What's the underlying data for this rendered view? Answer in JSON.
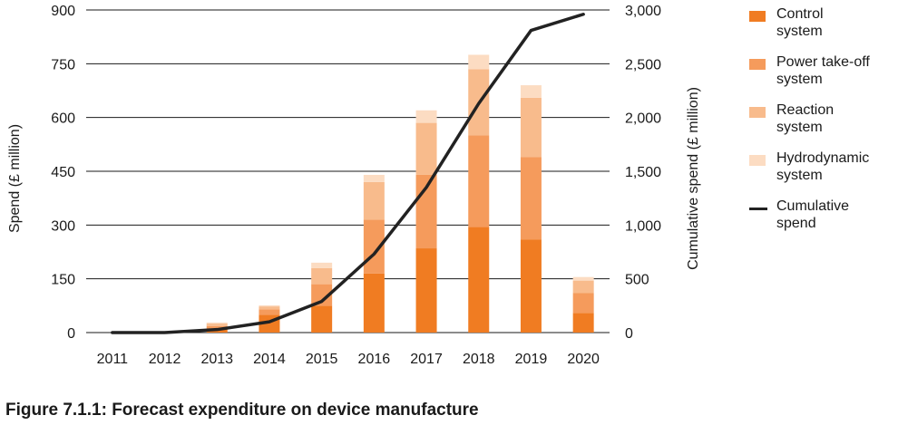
{
  "caption": "Figure 7.1.1: Forecast expenditure on device manufacture",
  "chart_data": {
    "type": "bar",
    "stacked": true,
    "title": "",
    "xlabel": "",
    "ylabel": "Spend (£ million)",
    "y2label": "Cumulative spend (£ million)",
    "categories": [
      "2011",
      "2012",
      "2013",
      "2014",
      "2015",
      "2016",
      "2017",
      "2018",
      "2019",
      "2020"
    ],
    "ylim": [
      0,
      900
    ],
    "yticks": [
      "0",
      "150",
      "300",
      "450",
      "600",
      "750",
      "900"
    ],
    "y2lim": [
      0,
      3000
    ],
    "y2ticks": [
      "0",
      "500",
      "1,000",
      "1,500",
      "2,000",
      "2,500",
      "3,000"
    ],
    "grid": "horizontal",
    "legend_position": "right",
    "series": [
      {
        "name": "Control\nsystem",
        "color": "#f07c22",
        "values": [
          0,
          0,
          10,
          50,
          75,
          165,
          235,
          295,
          260,
          55
        ]
      },
      {
        "name": "Power take-off\nsystem",
        "color": "#f59b5c",
        "values": [
          0,
          0,
          8,
          15,
          60,
          150,
          205,
          255,
          230,
          55
        ]
      },
      {
        "name": "Reaction\nsystem",
        "color": "#f8bb8c",
        "values": [
          0,
          0,
          7,
          8,
          45,
          105,
          145,
          185,
          165,
          35
        ]
      },
      {
        "name": "Hydrodynamic\nsystem",
        "color": "#fcdcc2",
        "values": [
          0,
          0,
          3,
          3,
          15,
          20,
          35,
          40,
          35,
          10
        ]
      }
    ],
    "cumulative": {
      "name": "Cumulative\nspend",
      "color": "#222222",
      "axis": "right",
      "values": [
        0,
        0,
        28,
        100,
        290,
        730,
        1350,
        2130,
        2810,
        2960
      ]
    }
  }
}
